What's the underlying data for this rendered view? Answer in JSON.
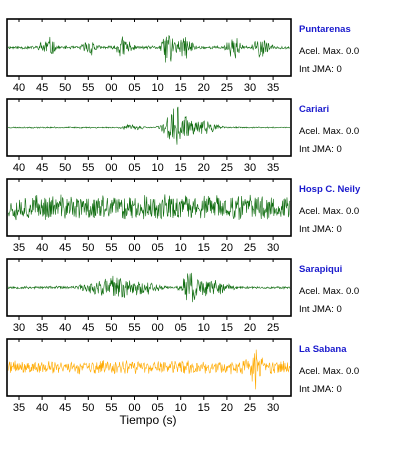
{
  "chart_data": {
    "type": "line",
    "xlabel": "Tiempo (s)",
    "ylabel": "",
    "panels": [
      {
        "station": "Puntarenas",
        "accel_label": "Acel. Max. 0.0",
        "jma_label": "Int JMA: 0",
        "color": "#0d6b0d",
        "ticks": [
          "40",
          "45",
          "50",
          "55",
          "00",
          "05",
          "10",
          "15",
          "20",
          "25",
          "30",
          "35"
        ],
        "seed": 11,
        "noise": 0.07,
        "bursts": [
          [
            0.14,
            0.03,
            0.5
          ],
          [
            0.29,
            0.028,
            0.4
          ],
          [
            0.41,
            0.03,
            0.55
          ],
          [
            0.57,
            0.025,
            0.9
          ],
          [
            0.63,
            0.03,
            0.55
          ],
          [
            0.8,
            0.025,
            0.6
          ],
          [
            0.9,
            0.03,
            0.5
          ]
        ]
      },
      {
        "station": "Cariari",
        "accel_label": "Acel. Max. 0.0",
        "jma_label": "Int JMA: 0",
        "color": "#0d6b0d",
        "ticks": [
          "40",
          "45",
          "50",
          "55",
          "00",
          "05",
          "10",
          "15",
          "20",
          "25",
          "30",
          "35"
        ],
        "seed": 23,
        "noise": 0.03,
        "bursts": [
          [
            0.44,
            0.04,
            0.15
          ],
          [
            0.6,
            0.045,
            0.95
          ],
          [
            0.68,
            0.06,
            0.35
          ]
        ]
      },
      {
        "station": "Hosp C. Neily",
        "accel_label": "Acel. Max. 0.0",
        "jma_label": "Int JMA: 0",
        "color": "#0d6b0d",
        "ticks": [
          "35",
          "40",
          "45",
          "50",
          "55",
          "00",
          "05",
          "10",
          "15",
          "20",
          "25",
          "30"
        ],
        "seed": 37,
        "noise": 0.55,
        "bursts": [
          [
            0.03,
            0.02,
            0.35
          ],
          [
            0.1,
            0.03,
            0.3
          ],
          [
            0.7,
            0.03,
            0.4
          ],
          [
            0.82,
            0.02,
            0.35
          ]
        ]
      },
      {
        "station": "Sarapiqui",
        "accel_label": "Acel. Max. 0.0",
        "jma_label": "Int JMA: 0",
        "color": "#0d6b0d",
        "ticks": [
          "30",
          "35",
          "40",
          "45",
          "50",
          "55",
          "00",
          "05",
          "10",
          "15",
          "20",
          "25"
        ],
        "seed": 53,
        "noise": 0.06,
        "bursts": [
          [
            0.4,
            0.12,
            0.55
          ],
          [
            0.65,
            0.03,
            0.95
          ],
          [
            0.7,
            0.08,
            0.45
          ]
        ]
      },
      {
        "station": "La Sabana",
        "accel_label": "Acel. Max. 0.0",
        "jma_label": "Int JMA: 0",
        "color": "#ffaa00",
        "ticks": [
          "35",
          "40",
          "45",
          "50",
          "55",
          "00",
          "05",
          "10",
          "15",
          "20",
          "25",
          "30"
        ],
        "seed": 71,
        "noise": 0.3,
        "bursts": [
          [
            0.31,
            0.04,
            0.3
          ],
          [
            0.55,
            0.05,
            0.3
          ],
          [
            0.88,
            0.025,
            0.95
          ],
          [
            0.84,
            0.04,
            0.4
          ]
        ]
      }
    ]
  }
}
